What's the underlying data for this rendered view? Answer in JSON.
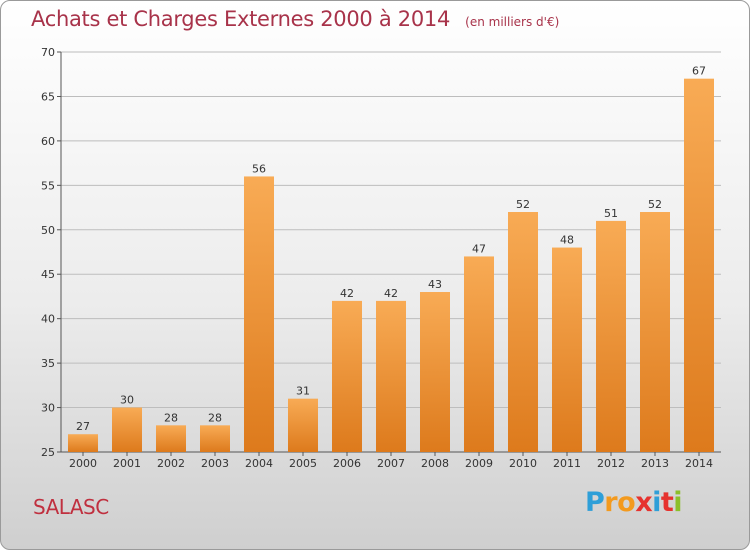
{
  "title": "Achats et Charges Externes 2000 à 2014",
  "unit": "(en milliers d'€)",
  "commune": "SALASC",
  "logo": {
    "p": "P",
    "r": "r",
    "o": "o",
    "x": "x",
    "i1": "i",
    "t": "t",
    "i2": "i"
  },
  "colors": {
    "bar_light": "#f8ab55",
    "bar_dark": "#dd7a1c",
    "title": "#a8334a",
    "grid": "#bdbdbd"
  },
  "chart_data": {
    "type": "bar",
    "categories": [
      "2000",
      "2001",
      "2002",
      "2003",
      "2004",
      "2005",
      "2006",
      "2007",
      "2008",
      "2009",
      "2010",
      "2011",
      "2012",
      "2013",
      "2014"
    ],
    "values": [
      27,
      30,
      28,
      28,
      56,
      31,
      42,
      42,
      43,
      47,
      52,
      48,
      51,
      52,
      67
    ],
    "ylim": [
      25,
      70
    ],
    "yticks": [
      25,
      30,
      35,
      40,
      45,
      50,
      55,
      60,
      65,
      70
    ],
    "grid": true,
    "data_labels": true
  }
}
